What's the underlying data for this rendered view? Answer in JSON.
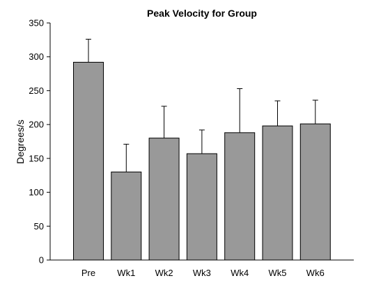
{
  "chart_data": {
    "type": "bar",
    "title": "Peak Velocity for Group",
    "xlabel": "",
    "ylabel": "Degrees/s",
    "categories": [
      "Pre",
      "Wk1",
      "Wk2",
      "Wk3",
      "Wk4",
      "Wk5",
      "Wk6"
    ],
    "values": [
      292,
      130,
      180,
      157,
      188,
      198,
      201
    ],
    "error_upper": [
      34,
      41,
      47,
      35,
      65,
      37,
      35
    ],
    "ylim": [
      0,
      350
    ],
    "yticks": [
      "0",
      "50",
      "100",
      "150",
      "200",
      "250",
      "300",
      "350"
    ],
    "grid": false,
    "legend": "none",
    "bar_color": "#999999",
    "edge_color": "#000000"
  }
}
